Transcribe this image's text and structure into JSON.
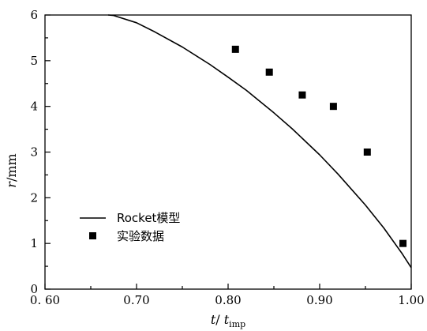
{
  "chart_data": {
    "type": "line",
    "xlabel": {
      "main": "t",
      "sep": "/ ",
      "var": "t",
      "sub": "imp"
    },
    "ylabel": {
      "main": "r",
      "unit": "/mm"
    },
    "xlim": [
      0.6,
      1.0
    ],
    "ylim": [
      0,
      6
    ],
    "x_tick_labels": [
      "0. 60",
      "0.70",
      "0.80",
      "0.90",
      "1.00"
    ],
    "x_tick_values": [
      0.6,
      0.7,
      0.8,
      0.9,
      1.0
    ],
    "y_ticks": [
      0,
      1,
      2,
      3,
      4,
      5,
      6
    ],
    "x_minor_step": 0.05,
    "y_minor_step": 0.5,
    "grid": false,
    "legend_position": "bottom-left",
    "series": [
      {
        "name": "Rocket模型",
        "type": "line",
        "color": "#000000",
        "x": [
          0.669,
          0.675,
          0.7,
          0.72,
          0.75,
          0.78,
          0.8,
          0.82,
          0.85,
          0.87,
          0.9,
          0.92,
          0.95,
          0.97,
          0.99,
          1.0
        ],
        "y": [
          6.0,
          5.99,
          5.83,
          5.63,
          5.3,
          4.92,
          4.64,
          4.35,
          3.86,
          3.51,
          2.94,
          2.52,
          1.84,
          1.34,
          0.78,
          0.47
        ]
      },
      {
        "name": "实验数据",
        "type": "scatter",
        "marker": "square",
        "color": "#000000",
        "x": [
          0.808,
          0.845,
          0.881,
          0.915,
          0.952,
          0.991
        ],
        "y": [
          5.25,
          4.75,
          4.25,
          4.0,
          3.0,
          1.0
        ]
      }
    ]
  }
}
